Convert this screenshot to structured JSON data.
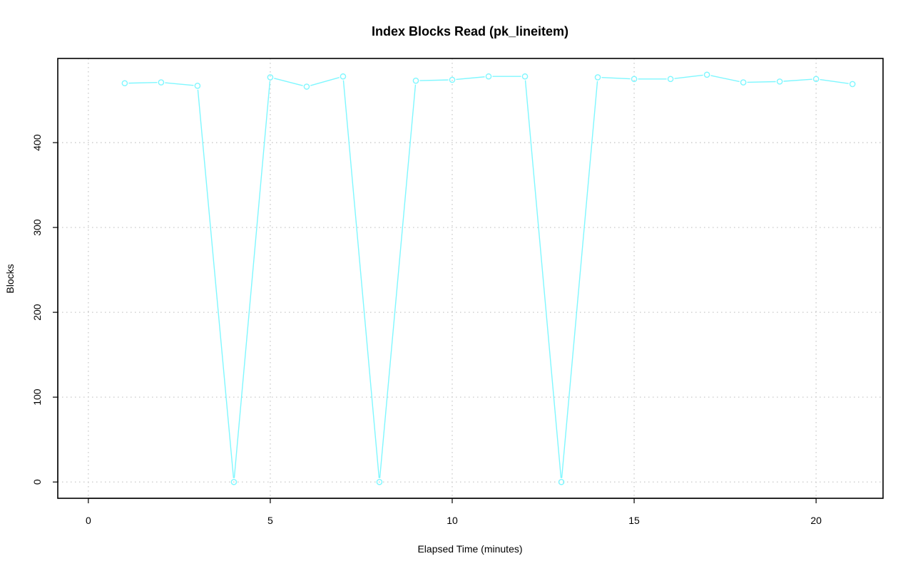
{
  "chart_data": {
    "type": "line",
    "title": "Index Blocks Read (pk_lineitem)",
    "xlabel": "Elapsed Time (minutes)",
    "ylabel": "Blocks",
    "xlim": [
      -0.84,
      21.84
    ],
    "ylim": [
      -19.2,
      499.2
    ],
    "xticks": [
      0,
      5,
      10,
      15,
      20
    ],
    "yticks": [
      0,
      100,
      200,
      300,
      400
    ],
    "grid": true,
    "legend": "none",
    "series": [
      {
        "color": "#7ff7ff",
        "marker": "circle",
        "x": [
          1,
          2,
          3,
          4,
          5,
          6,
          7,
          8,
          9,
          10,
          11,
          12,
          13,
          14,
          15,
          16,
          17,
          18,
          19,
          20,
          21
        ],
        "y": [
          470,
          471,
          467,
          0,
          477,
          466,
          478,
          0,
          473,
          474,
          478,
          478,
          0,
          477,
          475,
          475,
          480,
          471,
          472,
          475,
          469
        ]
      }
    ]
  }
}
